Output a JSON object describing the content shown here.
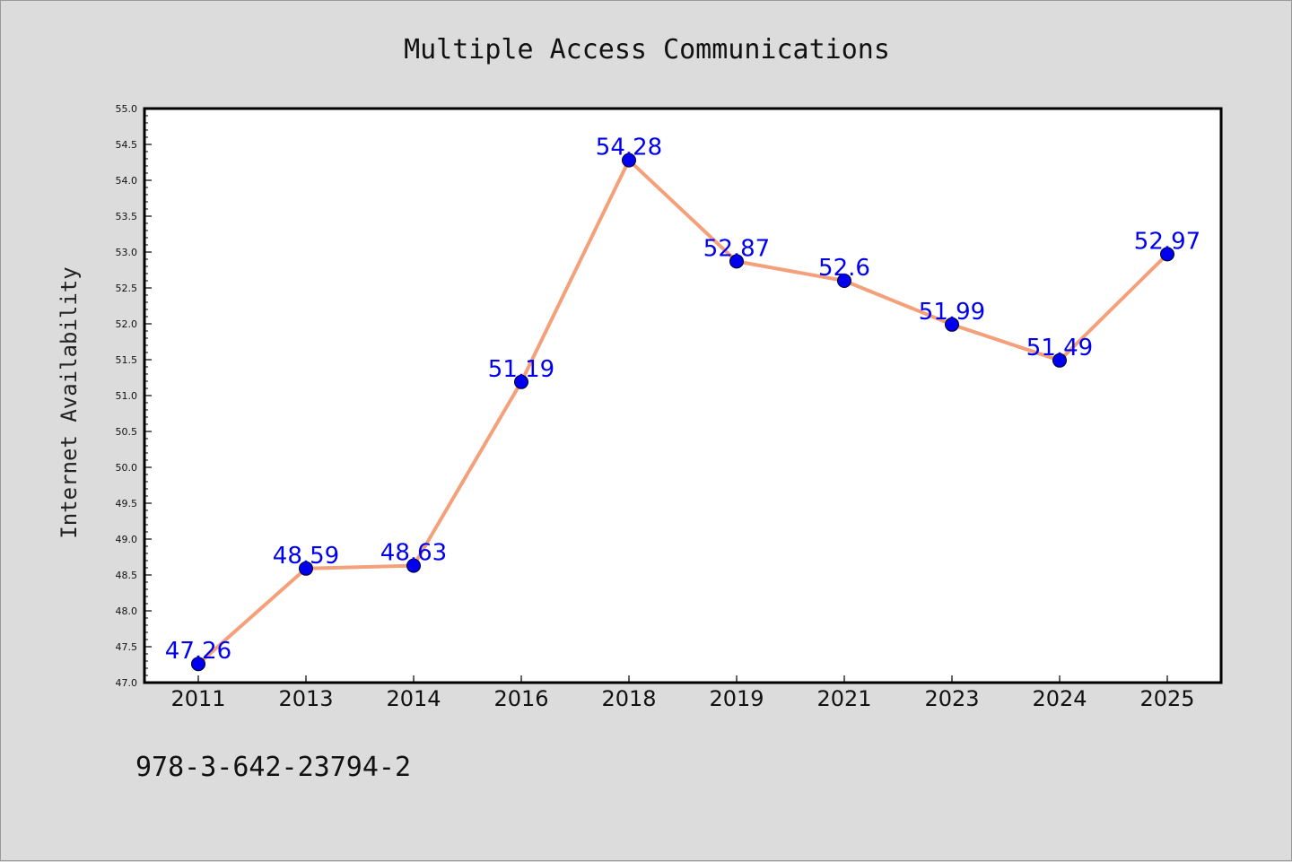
{
  "chart_data": {
    "type": "line",
    "title": "Multiple Access Communications",
    "xlabel": "",
    "ylabel": "Internet Availability",
    "categories": [
      "2011",
      "2013",
      "2014",
      "2016",
      "2018",
      "2019",
      "2021",
      "2023",
      "2024",
      "2025"
    ],
    "series": [
      {
        "values": [
          47.26,
          48.59,
          48.63,
          51.19,
          54.28,
          52.87,
          52.6,
          51.99,
          51.49,
          52.97
        ],
        "data_labels": [
          "47.26",
          "48.59",
          "48.63",
          "51.19",
          "54.28",
          "52.87",
          "52.6",
          "51.99",
          "51.49",
          "52.97"
        ],
        "line_color": "#f4a07a",
        "marker_color": "#0000ee",
        "label_color": "#0000ee"
      }
    ],
    "ylim": [
      47.0,
      55.0
    ],
    "y_ticks": [
      "47.0",
      "47.5",
      "48.0",
      "48.5",
      "49.0",
      "49.5",
      "50.0",
      "50.5",
      "51.0",
      "51.5",
      "52.0",
      "52.5",
      "53.0",
      "53.5",
      "54.0",
      "54.5",
      "55.0"
    ],
    "grid": false,
    "legend": "none"
  },
  "footnote": "978-3-642-23794-2",
  "colors": {
    "figure_background": "#dcdcdc",
    "plot_background": "#ffffff",
    "axes_border": "#000000"
  }
}
